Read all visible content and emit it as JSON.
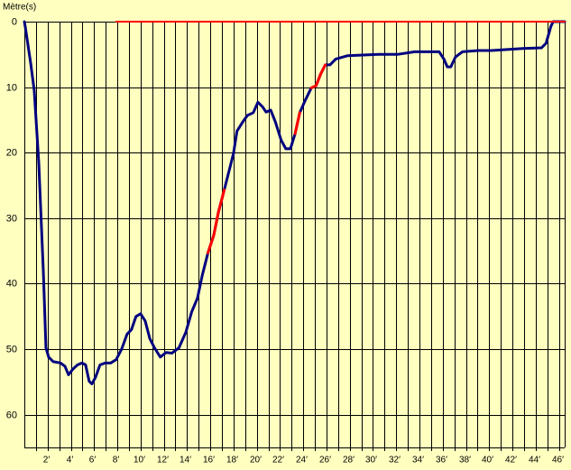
{
  "chart_data": {
    "type": "line",
    "ylabel": "Mètre(s)",
    "ylim": [
      0,
      65
    ],
    "yticks": [
      0,
      10,
      20,
      30,
      40,
      50,
      60
    ],
    "y_inverted": true,
    "xlim": [
      0,
      46.5
    ],
    "xticks": [
      {
        "value": 2,
        "label": "2′"
      },
      {
        "value": 4,
        "label": "4′"
      },
      {
        "value": 6,
        "label": "6′"
      },
      {
        "value": 8,
        "label": "8′"
      },
      {
        "value": 10,
        "label": "10′"
      },
      {
        "value": 12,
        "label": "12′"
      },
      {
        "value": 14,
        "label": "14′"
      },
      {
        "value": 16,
        "label": "16′"
      },
      {
        "value": 18,
        "label": "18′"
      },
      {
        "value": 20,
        "label": "20′"
      },
      {
        "value": 22,
        "label": "22′"
      },
      {
        "value": 24,
        "label": "24′"
      },
      {
        "value": 26,
        "label": "26′"
      },
      {
        "value": 28,
        "label": "28′"
      },
      {
        "value": 30,
        "label": "30′"
      },
      {
        "value": 32,
        "label": "32′"
      },
      {
        "value": 34,
        "label": "34′"
      },
      {
        "value": 36,
        "label": "36′"
      },
      {
        "value": 38,
        "label": "38′"
      },
      {
        "value": 40,
        "label": "40′"
      },
      {
        "value": 42,
        "label": "42′"
      },
      {
        "value": 44,
        "label": "44′"
      },
      {
        "value": 46,
        "label": "46′"
      }
    ],
    "xminor_ticks": [
      1,
      3,
      5,
      7,
      9,
      11,
      13,
      15,
      17,
      19,
      21,
      23,
      25,
      27,
      29,
      31,
      33,
      35,
      37,
      39,
      41,
      43,
      45
    ],
    "grid": true,
    "background": "#ffffc0",
    "series": [
      {
        "color": "#000080",
        "width": 3,
        "x": [
          0,
          0.08,
          0.54,
          0.85,
          1.24,
          1.63,
          1.86,
          2.09,
          2.48,
          3.1,
          3.49,
          3.8,
          4.2,
          4.57,
          4.96,
          5.27,
          5.58,
          5.81,
          6.12,
          6.51,
          6.98,
          7.44,
          7.9,
          8.37,
          8.84,
          9.22,
          9.61,
          10,
          10.4,
          10.8,
          11.2,
          11.7,
          12.2,
          12.7,
          13.3,
          13.9,
          14.4,
          14.9,
          15.3,
          15.8,
          16.3,
          16.7,
          17.2,
          17.7,
          18,
          18.3,
          18.8,
          19.2,
          19.7,
          20.1,
          20.5,
          20.8,
          21.2,
          21.6,
          22.1,
          22.5,
          22.9,
          23.3,
          23.7,
          24.2,
          24.7,
          25.1,
          25.5,
          25.9,
          26.3,
          26.8,
          27.8,
          30.5,
          32.1,
          33.6,
          35.7,
          36.1,
          36.4,
          36.7,
          37.1,
          37.7,
          39.1,
          40.2,
          42.9,
          44.5,
          44.9,
          45.3,
          45.5,
          46.5
        ],
        "values": [
          0,
          0.8,
          6.3,
          10.5,
          21.5,
          38,
          49.8,
          51.2,
          51.9,
          52.1,
          52.6,
          53.9,
          53,
          52.4,
          52.1,
          52.4,
          54.9,
          55.3,
          54.3,
          52.4,
          52.1,
          52.1,
          51.6,
          50,
          47.7,
          47,
          45,
          44.6,
          45.7,
          48.4,
          49.8,
          51.2,
          50.5,
          50.6,
          49.8,
          47.4,
          44.3,
          42.2,
          38.8,
          35.3,
          32.6,
          29.1,
          25.7,
          22.2,
          20.1,
          16.7,
          15.3,
          14.3,
          13.9,
          12.3,
          13,
          13.8,
          13.5,
          15.3,
          18.1,
          19.4,
          19.4,
          17.1,
          13.9,
          11.9,
          10.1,
          9.8,
          8,
          6.6,
          6.6,
          5.7,
          5.2,
          5,
          5,
          4.6,
          4.6,
          5.7,
          6.9,
          6.9,
          5.4,
          4.6,
          4.4,
          4.4,
          4.1,
          4,
          3.3,
          0.8,
          0,
          0
        ]
      },
      {
        "color": "#ff0000",
        "width": 3,
        "x": [
          15.8,
          16.3,
          16.7,
          17.2,
          null,
          23.3,
          23.7,
          null,
          24.7,
          25.1,
          25.5,
          25.9
        ],
        "values": [
          35.3,
          32.6,
          29.1,
          25.7,
          null,
          17.1,
          13.9,
          null,
          10.1,
          9.8,
          8,
          6.6
        ]
      },
      {
        "color": "#ff0000",
        "width": 2,
        "x": [
          7.9,
          46.5
        ],
        "values": [
          0,
          0
        ]
      }
    ]
  }
}
